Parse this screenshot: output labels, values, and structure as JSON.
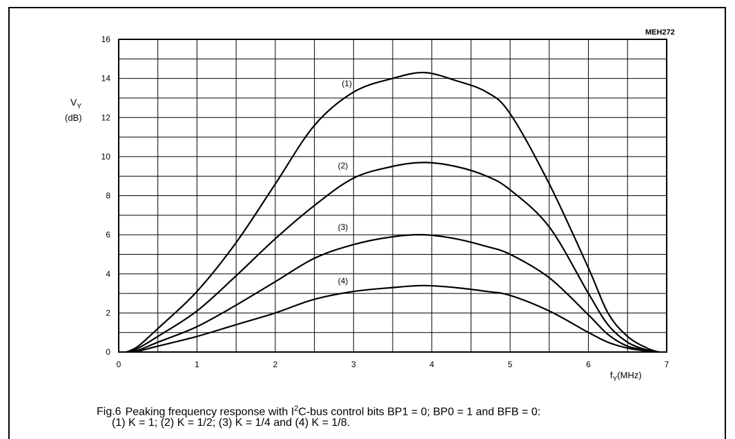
{
  "figure": {
    "code": "MEH272",
    "fig_label": "Fig.6",
    "caption_line1_pre": "Peaking frequency response with I",
    "caption_line1_sup": "2",
    "caption_line1_post": "C-bus control bits BP1 = 0; BP0 = 1 and BFB = 0:",
    "caption_line2": "(1) K = 1; (2) K = 1/2; (3) K = 1/4 and (4) K = 1/8."
  },
  "chart_data": {
    "type": "line",
    "ylabel": {
      "main": "V",
      "sub": "Y",
      "unit": "(dB)"
    },
    "xlabel": {
      "main": "f",
      "sub": "Y",
      "unit": "(MHz)"
    },
    "xlim": [
      0,
      7
    ],
    "ylim": [
      0,
      16
    ],
    "x_ticks": [
      "0",
      "1",
      "2",
      "3",
      "4",
      "5",
      "6",
      "7"
    ],
    "y_ticks": [
      "0",
      "2",
      "4",
      "6",
      "8",
      "10",
      "12",
      "14",
      "16"
    ],
    "x_minor_step": 0.5,
    "y_minor_step": 1,
    "grid": true,
    "series": [
      {
        "name": "(1)",
        "x": [
          0.1,
          0.25,
          0.5,
          1,
          1.5,
          2,
          2.5,
          3,
          3.5,
          3.9,
          4.3,
          4.7,
          5,
          5.5,
          6,
          6.25,
          6.5,
          6.75,
          6.9
        ],
        "y": [
          0,
          0.3,
          1.2,
          3.1,
          5.6,
          8.6,
          11.6,
          13.3,
          14.0,
          14.3,
          13.9,
          13.3,
          12.2,
          8.6,
          4.3,
          2.0,
          0.8,
          0.2,
          0
        ]
      },
      {
        "name": "(2)",
        "x": [
          0.1,
          0.25,
          0.5,
          1,
          1.5,
          2,
          2.5,
          3,
          3.5,
          3.9,
          4.3,
          4.7,
          5,
          5.5,
          6,
          6.25,
          6.5,
          6.75,
          6.9
        ],
        "y": [
          0,
          0.2,
          0.8,
          2.1,
          3.9,
          5.8,
          7.5,
          8.9,
          9.5,
          9.7,
          9.5,
          9.0,
          8.3,
          6.4,
          3.0,
          1.4,
          0.5,
          0.1,
          0
        ]
      },
      {
        "name": "(3)",
        "x": [
          0.1,
          0.25,
          0.5,
          1,
          1.5,
          2,
          2.5,
          3,
          3.5,
          3.9,
          4.3,
          4.7,
          5,
          5.5,
          6,
          6.25,
          6.5,
          6.75,
          6.9
        ],
        "y": [
          0,
          0.1,
          0.5,
          1.3,
          2.4,
          3.6,
          4.8,
          5.5,
          5.9,
          6.0,
          5.8,
          5.4,
          5.0,
          3.8,
          1.9,
          0.9,
          0.3,
          0.1,
          0
        ]
      },
      {
        "name": "(4)",
        "x": [
          0.1,
          0.25,
          0.5,
          1,
          1.5,
          2,
          2.5,
          3,
          3.5,
          3.9,
          4.3,
          4.7,
          5,
          5.5,
          6,
          6.25,
          6.5,
          6.75,
          6.9
        ],
        "y": [
          0,
          0.05,
          0.3,
          0.8,
          1.4,
          2.0,
          2.7,
          3.1,
          3.3,
          3.4,
          3.3,
          3.1,
          2.9,
          2.1,
          1.0,
          0.5,
          0.2,
          0.05,
          0
        ]
      }
    ],
    "series_label_positions": [
      {
        "name": "(1)",
        "x": 2.85,
        "y": 13.6
      },
      {
        "name": "(2)",
        "x": 2.8,
        "y": 9.4
      },
      {
        "name": "(3)",
        "x": 2.8,
        "y": 6.25
      },
      {
        "name": "(4)",
        "x": 2.8,
        "y": 3.5
      }
    ]
  }
}
